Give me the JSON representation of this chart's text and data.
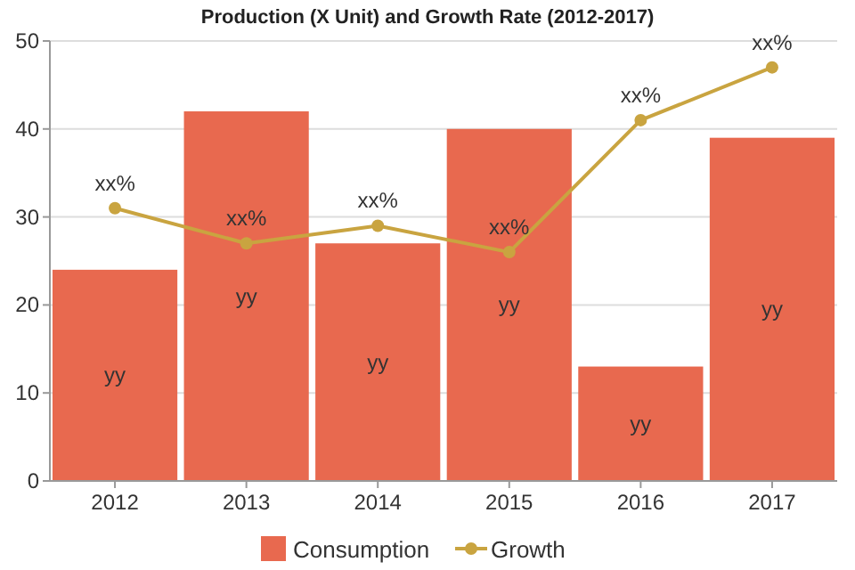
{
  "chart_data": {
    "type": "bar",
    "title": "Production (X Unit) and Growth Rate (2012-2017)",
    "categories": [
      "2012",
      "2013",
      "2014",
      "2015",
      "2016",
      "2017"
    ],
    "series": [
      {
        "name": "Consumption",
        "color": "#e8694f",
        "values": [
          24,
          42,
          27,
          40,
          13,
          39
        ],
        "value_labels": [
          "yy",
          "yy",
          "yy",
          "yy",
          "yy",
          "yy"
        ]
      },
      {
        "name": "Growth",
        "type": "line",
        "color": "#c9a440",
        "values": [
          31,
          27,
          29,
          26,
          41,
          47
        ],
        "value_labels": [
          "xx%",
          "xx%",
          "xx%",
          "xx%",
          "xx%",
          "xx%"
        ]
      }
    ],
    "ylim": [
      0,
      50
    ],
    "yticks": [
      0,
      10,
      20,
      30,
      40,
      50
    ],
    "grid": "y",
    "legend": "bottom",
    "marker": "circle"
  }
}
